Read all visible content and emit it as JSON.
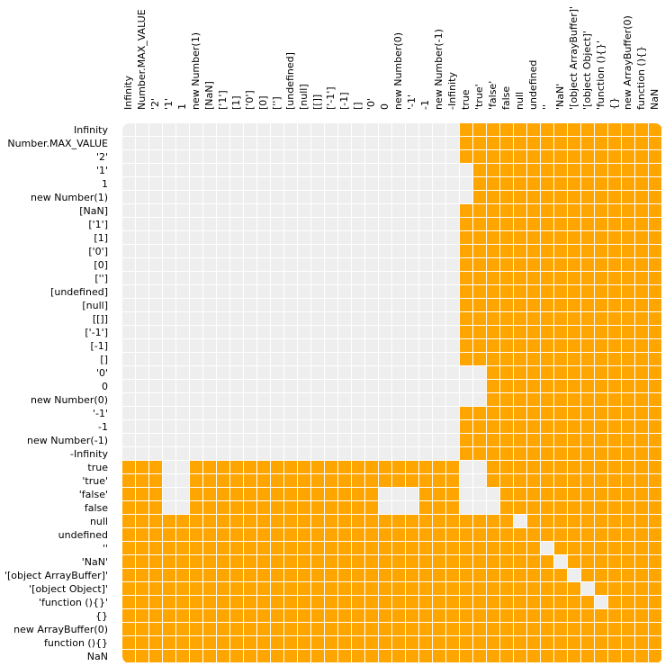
{
  "labels": [
    "Infinity",
    "Number.MAX_VALUE",
    "'2'",
    "'1'",
    "1",
    "new Number(1)",
    "[NaN]",
    "['1']",
    "[1]",
    "['0']",
    "[0]",
    "['']",
    "[undefined]",
    "[null]",
    "[[]]",
    "['-1']",
    "[-1]",
    "[]",
    "'0'",
    "0",
    "new Number(0)",
    "'-1'",
    "-1",
    "new Number(-1)",
    "-Infinity",
    "true",
    "'true'",
    "'false'",
    "false",
    "null",
    "undefined",
    "''",
    "'NaN'",
    "'[object ArrayBuffer]'",
    "'[object Object]'",
    "'function (){}'",
    "{}",
    "new ArrayBuffer(0)",
    "function (){}",
    "NaN"
  ],
  "colors": {
    "true_cell": "#ffa500",
    "false_cell": "#eeeeee",
    "background": "#ffffff"
  },
  "matrix": [
    "0000000000000000000000000111111111111111",
    "0000000000000000000000000111111111111111",
    "0000000000000000000000000111111111111111",
    "0000000000000000000000000011111111111111",
    "0000000000000000000000000011111111111111",
    "0000000000000000000000000011111111111111",
    "0000000000000000000000000111111111111111",
    "0000000000000000000000000111111111111111",
    "0000000000000000000000000111111111111111",
    "0000000000000000000000000111111111111111",
    "0000000000000000000000000111111111111111",
    "0000000000000000000000000111111111111111",
    "0000000000000000000000000111111111111111",
    "0000000000000000000000000111111111111111",
    "0000000000000000000000000111111111111111",
    "0000000000000000000000000111111111111111",
    "0000000000000000000000000111111111111111",
    "0000000000000000000000000111111111111111",
    "0000000000000000000000000001111111111111",
    "0000000000000000000000000001111111111111",
    "0000000000000000000000000001111111111111",
    "0000000000000000000000000111111111111111",
    "0000000000000000000000000111111111111111",
    "0000000000000000000000000111111111111111",
    "0000000000000000000000000111111111111111",
    "1110011111111111111111111001111111111111",
    "1110011111111111111111111001111111111111",
    "1110011111111111111000111000111111111111",
    "1110011111111111111000111000111111111111",
    "1111111111111111111111111111101111111111",
    "1111111111111111111111111111111111111111",
    "1111111111111111111111111111111011111111",
    "1111111111111111111111111111111101111111",
    "1111111111111111111111111111111110111111",
    "1111111111111111111111111111111111011111",
    "1111111111111111111111111111111111101111",
    "1111111111111111111111111111111111111111",
    "1111111111111111111111111111111111111111",
    "1111111111111111111111111111111111111111",
    "1111111111111111111111111111111111111111"
  ],
  "inner_block": {
    "rows": [
      6,
      17
    ],
    "cols": [
      6,
      17
    ]
  }
}
